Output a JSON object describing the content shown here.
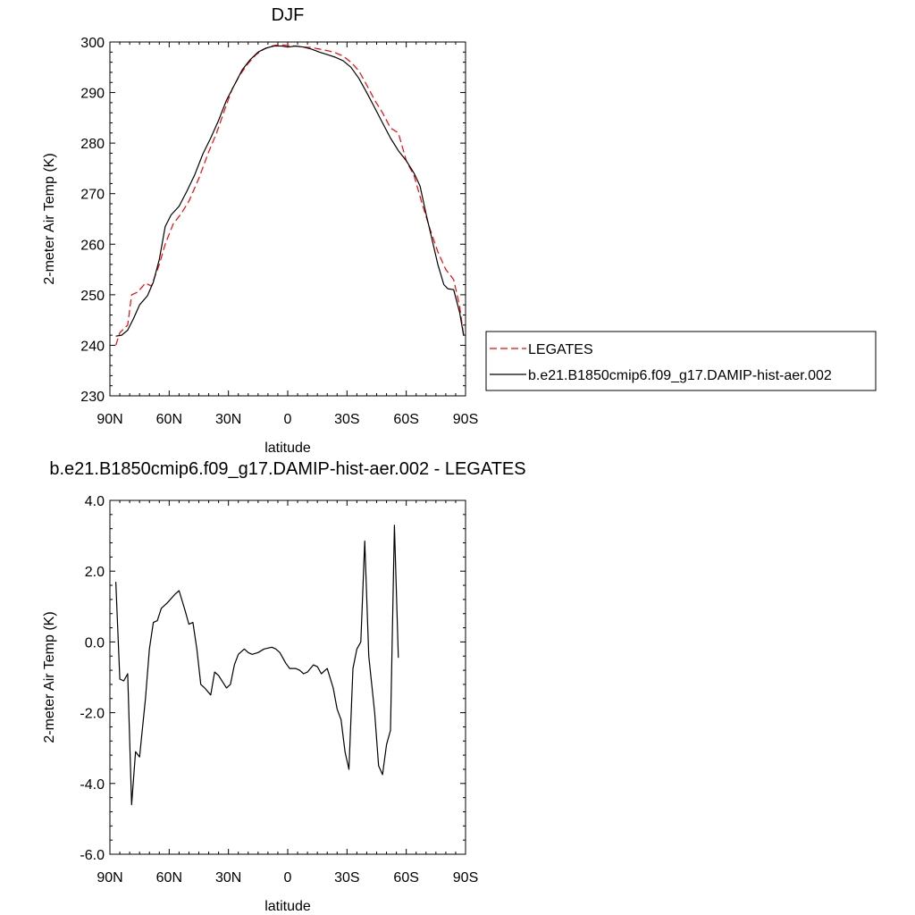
{
  "chart_data": [
    {
      "type": "line",
      "title": "DJF",
      "xlabel": "latitude",
      "ylabel": "2-meter Air Temp (K)",
      "xlim": [
        90,
        -90
      ],
      "ylim": [
        230,
        300
      ],
      "xticks": [
        {
          "value": 90,
          "label": "90N"
        },
        {
          "value": 60,
          "label": "60N"
        },
        {
          "value": 30,
          "label": "30N"
        },
        {
          "value": 0,
          "label": "0"
        },
        {
          "value": -30,
          "label": "30S"
        },
        {
          "value": -60,
          "label": "60S"
        },
        {
          "value": -90,
          "label": "90S"
        }
      ],
      "yticks": [
        "300",
        "290",
        "280",
        "270",
        "260",
        "250",
        "240",
        "230"
      ],
      "legend_position": "right",
      "series": [
        {
          "name": "LEGATES",
          "color": "#ff0000",
          "dash": "dashed",
          "points": [
            [
              87,
              240
            ],
            [
              85,
              242.5
            ],
            [
              81,
              244
            ],
            [
              79,
              250
            ],
            [
              76,
              250.5
            ],
            [
              72,
              252.3
            ],
            [
              69,
              251.7
            ],
            [
              65,
              256
            ],
            [
              62,
              260
            ],
            [
              58,
              264
            ],
            [
              54,
              266
            ],
            [
              50,
              268.5
            ],
            [
              45,
              273
            ],
            [
              40,
              278.3
            ],
            [
              36,
              282
            ],
            [
              32,
              286.5
            ],
            [
              28,
              290.8
            ],
            [
              24,
              293.6
            ],
            [
              20,
              295.8
            ],
            [
              16,
              297.5
            ],
            [
              12,
              298.6
            ],
            [
              8,
              299.2
            ],
            [
              4,
              299.5
            ],
            [
              0,
              299.3
            ],
            [
              -4,
              299.2
            ],
            [
              -8,
              299
            ],
            [
              -12,
              298.9
            ],
            [
              -16,
              298.6
            ],
            [
              -20,
              298.3
            ],
            [
              -24,
              297.9
            ],
            [
              -28,
              297.2
            ],
            [
              -32,
              296
            ],
            [
              -36,
              294.3
            ],
            [
              -40,
              291.5
            ],
            [
              -44,
              288.5
            ],
            [
              -48,
              286
            ],
            [
              -52,
              283
            ],
            [
              -56,
              282
            ],
            [
              -60,
              276.5
            ],
            [
              -64,
              273.5
            ],
            [
              -68,
              268
            ],
            [
              -72,
              263
            ],
            [
              -76,
              258.5
            ],
            [
              -80,
              255
            ],
            [
              -84,
              253
            ],
            [
              -87,
              247.7
            ],
            [
              -89,
              242
            ]
          ]
        },
        {
          "name": "b.e21.B1850cmip6.f09_g17.DAMIP-hist-aer.002",
          "color": "#000000",
          "dash": "solid",
          "points": [
            [
              87,
              241.8
            ],
            [
              84,
              242
            ],
            [
              81,
              243
            ],
            [
              78,
              245.3
            ],
            [
              75,
              248
            ],
            [
              71,
              249.8
            ],
            [
              68,
              252.5
            ],
            [
              65,
              257
            ],
            [
              62,
              263.5
            ],
            [
              59,
              265.8
            ],
            [
              55,
              267.5
            ],
            [
              51,
              270.5
            ],
            [
              47,
              273.8
            ],
            [
              43,
              277.8
            ],
            [
              39,
              281
            ],
            [
              35,
              284.5
            ],
            [
              31,
              288.5
            ],
            [
              27,
              291.5
            ],
            [
              23,
              294.5
            ],
            [
              19,
              296.5
            ],
            [
              15,
              298
            ],
            [
              11,
              298.8
            ],
            [
              7,
              299.2
            ],
            [
              3,
              299.2
            ],
            [
              0,
              299
            ],
            [
              -4,
              299.2
            ],
            [
              -8,
              299
            ],
            [
              -12,
              298.6
            ],
            [
              -16,
              298
            ],
            [
              -20,
              297.5
            ],
            [
              -24,
              297
            ],
            [
              -28,
              296.3
            ],
            [
              -32,
              295
            ],
            [
              -36,
              292.8
            ],
            [
              -40,
              290
            ],
            [
              -44,
              287
            ],
            [
              -48,
              284
            ],
            [
              -52,
              281
            ],
            [
              -56,
              278.5
            ],
            [
              -60,
              276.5
            ],
            [
              -64,
              274
            ],
            [
              -67,
              271.5
            ],
            [
              -70,
              266
            ],
            [
              -73,
              261
            ],
            [
              -76,
              256
            ],
            [
              -79,
              252
            ],
            [
              -81,
              251.2
            ],
            [
              -84,
              251
            ],
            [
              -87,
              246.5
            ],
            [
              -89,
              242
            ]
          ]
        }
      ]
    },
    {
      "type": "line",
      "title": "b.e21.B1850cmip6.f09_g17.DAMIP-hist-aer.002 - LEGATES",
      "xlabel": "latitude",
      "ylabel": "2-meter Air Temp (K)",
      "xlim": [
        90,
        -90
      ],
      "ylim": [
        -6,
        4
      ],
      "xticks": [
        {
          "value": 90,
          "label": "90N"
        },
        {
          "value": 60,
          "label": "60N"
        },
        {
          "value": 30,
          "label": "30N"
        },
        {
          "value": 0,
          "label": "0"
        },
        {
          "value": -30,
          "label": "30S"
        },
        {
          "value": -60,
          "label": "60S"
        },
        {
          "value": -90,
          "label": "90S"
        }
      ],
      "yticks": [
        "4.0",
        "2.0",
        "0.0",
        "-2.0",
        "-4.0",
        "-6.0"
      ],
      "series": [
        {
          "color": "#000000",
          "dash": "solid",
          "points": [
            [
              87,
              1.7
            ],
            [
              85,
              -1.05
            ],
            [
              83,
              -1.1
            ],
            [
              81,
              -0.9
            ],
            [
              79,
              -4.6
            ],
            [
              77,
              -3.1
            ],
            [
              75,
              -3.25
            ],
            [
              72,
              -1.6
            ],
            [
              70,
              -0.2
            ],
            [
              68,
              0.55
            ],
            [
              66,
              0.6
            ],
            [
              64,
              0.95
            ],
            [
              61,
              1.1
            ],
            [
              57,
              1.35
            ],
            [
              55,
              1.45
            ],
            [
              52,
              0.9
            ],
            [
              50,
              0.5
            ],
            [
              48,
              0.55
            ],
            [
              46,
              -0.2
            ],
            [
              44,
              -1.2
            ],
            [
              42,
              -1.3
            ],
            [
              39,
              -1.5
            ],
            [
              37,
              -0.85
            ],
            [
              35,
              -0.95
            ],
            [
              31,
              -1.3
            ],
            [
              29,
              -1.2
            ],
            [
              27,
              -0.65
            ],
            [
              25,
              -0.35
            ],
            [
              22,
              -0.2
            ],
            [
              20,
              -0.3
            ],
            [
              18,
              -0.35
            ],
            [
              15,
              -0.3
            ],
            [
              12,
              -0.2
            ],
            [
              8,
              -0.15
            ],
            [
              6,
              -0.2
            ],
            [
              4,
              -0.3
            ],
            [
              1,
              -0.6
            ],
            [
              -1,
              -0.75
            ],
            [
              -4,
              -0.75
            ],
            [
              -6,
              -0.8
            ],
            [
              -8,
              -0.9
            ],
            [
              -10,
              -0.85
            ],
            [
              -13,
              -0.65
            ],
            [
              -15,
              -0.7
            ],
            [
              -17,
              -0.9
            ],
            [
              -20,
              -0.75
            ],
            [
              -23,
              -1.3
            ],
            [
              -25,
              -1.9
            ],
            [
              -27,
              -2.2
            ],
            [
              -29,
              -3.1
            ],
            [
              -31,
              -3.6
            ],
            [
              -33,
              -0.75
            ],
            [
              -35,
              -0.2
            ],
            [
              -37,
              0
            ],
            [
              -39,
              2.85
            ],
            [
              -41,
              -0.4
            ],
            [
              -44,
              -2.0
            ],
            [
              -46,
              -3.5
            ],
            [
              -48,
              -3.75
            ],
            [
              -50,
              -2.9
            ],
            [
              -52,
              -2.5
            ],
            [
              -54,
              3.3
            ],
            [
              -56,
              -0.45
            ]
          ]
        }
      ]
    }
  ]
}
